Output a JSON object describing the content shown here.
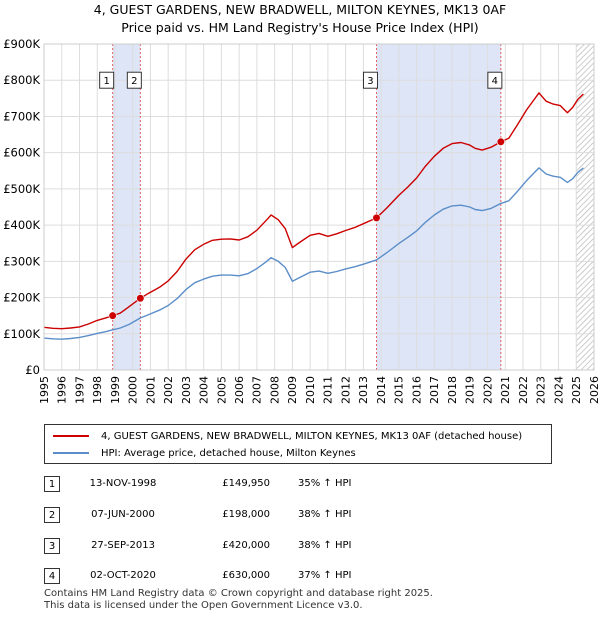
{
  "title_line1": "4, GUEST GARDENS, NEW BRADWELL, MILTON KEYNES, MK13 0AF",
  "title_line2": "Price paid vs. HM Land Registry's House Price Index (HPI)",
  "colors": {
    "property": "#cc0000",
    "hpi": "#5b8ec9",
    "shade": "#dde5f6",
    "grid": "#dddddd",
    "vline": "#e06060"
  },
  "chart_data": {
    "type": "line",
    "xlim": [
      1995,
      2026
    ],
    "ylim": [
      0,
      900000
    ],
    "x_ticks": [
      1995,
      1996,
      1997,
      1998,
      1999,
      2000,
      2001,
      2002,
      2003,
      2004,
      2005,
      2006,
      2007,
      2008,
      2009,
      2010,
      2011,
      2012,
      2013,
      2014,
      2015,
      2016,
      2017,
      2018,
      2019,
      2020,
      2021,
      2022,
      2023,
      2024,
      2025,
      2026
    ],
    "y_ticks": [
      {
        "value": 0,
        "label": "£0"
      },
      {
        "value": 100000,
        "label": "£100K"
      },
      {
        "value": 200000,
        "label": "£200K"
      },
      {
        "value": 300000,
        "label": "£300K"
      },
      {
        "value": 400000,
        "label": "£400K"
      },
      {
        "value": 500000,
        "label": "£500K"
      },
      {
        "value": 600000,
        "label": "£600K"
      },
      {
        "value": 700000,
        "label": "£700K"
      },
      {
        "value": 800000,
        "label": "£800K"
      },
      {
        "value": 900000,
        "label": "£900K"
      }
    ],
    "shaded_ranges": [
      [
        1998.87,
        2000.43
      ],
      [
        2013.74,
        2020.75
      ]
    ],
    "future_hatch_from": 2025.0,
    "series": [
      {
        "name": "4, GUEST GARDENS, NEW BRADWELL, MILTON KEYNES, MK13 0AF (detached house)",
        "color": "#cc0000",
        "points": [
          [
            1995.0,
            118000
          ],
          [
            1995.5,
            115000
          ],
          [
            1996.0,
            114000
          ],
          [
            1996.5,
            116000
          ],
          [
            1997.0,
            119000
          ],
          [
            1997.5,
            127000
          ],
          [
            1998.0,
            137000
          ],
          [
            1998.5,
            144000
          ],
          [
            1998.87,
            149950
          ],
          [
            1999.3,
            157000
          ],
          [
            1999.8,
            175000
          ],
          [
            2000.43,
            198000
          ],
          [
            2000.9,
            212000
          ],
          [
            2001.5,
            228000
          ],
          [
            2002.0,
            246000
          ],
          [
            2002.5,
            272000
          ],
          [
            2003.0,
            306000
          ],
          [
            2003.5,
            332000
          ],
          [
            2004.0,
            347000
          ],
          [
            2004.5,
            358000
          ],
          [
            2005.0,
            361000
          ],
          [
            2005.5,
            362000
          ],
          [
            2006.0,
            359000
          ],
          [
            2006.5,
            368000
          ],
          [
            2007.0,
            386000
          ],
          [
            2007.5,
            412000
          ],
          [
            2007.8,
            428000
          ],
          [
            2008.2,
            415000
          ],
          [
            2008.6,
            390000
          ],
          [
            2009.0,
            338000
          ],
          [
            2009.4,
            352000
          ],
          [
            2010.0,
            372000
          ],
          [
            2010.5,
            377000
          ],
          [
            2011.0,
            369000
          ],
          [
            2011.5,
            376000
          ],
          [
            2012.0,
            385000
          ],
          [
            2012.5,
            393000
          ],
          [
            2013.0,
            404000
          ],
          [
            2013.74,
            420000
          ],
          [
            2014.3,
            446000
          ],
          [
            2015.0,
            482000
          ],
          [
            2015.5,
            505000
          ],
          [
            2016.0,
            530000
          ],
          [
            2016.5,
            563000
          ],
          [
            2017.0,
            590000
          ],
          [
            2017.5,
            612000
          ],
          [
            2018.0,
            625000
          ],
          [
            2018.5,
            628000
          ],
          [
            2019.0,
            621000
          ],
          [
            2019.3,
            612000
          ],
          [
            2019.7,
            607000
          ],
          [
            2020.2,
            615000
          ],
          [
            2020.75,
            630000
          ],
          [
            2021.2,
            640000
          ],
          [
            2021.7,
            678000
          ],
          [
            2022.2,
            718000
          ],
          [
            2022.6,
            745000
          ],
          [
            2022.9,
            765000
          ],
          [
            2023.3,
            742000
          ],
          [
            2023.7,
            734000
          ],
          [
            2024.1,
            730000
          ],
          [
            2024.5,
            710000
          ],
          [
            2024.8,
            725000
          ],
          [
            2025.1,
            748000
          ],
          [
            2025.4,
            762000
          ]
        ]
      },
      {
        "name": "HPI: Average price, detached house, Milton Keynes",
        "color": "#5b8ec9",
        "points": [
          [
            1995.0,
            88000
          ],
          [
            1995.5,
            86000
          ],
          [
            1996.0,
            85000
          ],
          [
            1996.5,
            87000
          ],
          [
            1997.0,
            90000
          ],
          [
            1997.5,
            95000
          ],
          [
            1998.0,
            101000
          ],
          [
            1998.5,
            106000
          ],
          [
            1998.87,
            111000
          ],
          [
            1999.3,
            116000
          ],
          [
            1999.8,
            126000
          ],
          [
            2000.43,
            143500
          ],
          [
            2000.9,
            153000
          ],
          [
            2001.5,
            165000
          ],
          [
            2002.0,
            178000
          ],
          [
            2002.5,
            197000
          ],
          [
            2003.0,
            222000
          ],
          [
            2003.5,
            241000
          ],
          [
            2004.0,
            251000
          ],
          [
            2004.5,
            259000
          ],
          [
            2005.0,
            262000
          ],
          [
            2005.5,
            262000
          ],
          [
            2006.0,
            260000
          ],
          [
            2006.5,
            266000
          ],
          [
            2007.0,
            280000
          ],
          [
            2007.5,
            298000
          ],
          [
            2007.8,
            310000
          ],
          [
            2008.2,
            300000
          ],
          [
            2008.6,
            283000
          ],
          [
            2009.0,
            245000
          ],
          [
            2009.4,
            255000
          ],
          [
            2010.0,
            270000
          ],
          [
            2010.5,
            273000
          ],
          [
            2011.0,
            267000
          ],
          [
            2011.5,
            272000
          ],
          [
            2012.0,
            279000
          ],
          [
            2012.5,
            285000
          ],
          [
            2013.0,
            292000
          ],
          [
            2013.74,
            304000
          ],
          [
            2014.3,
            323000
          ],
          [
            2015.0,
            349000
          ],
          [
            2015.5,
            366000
          ],
          [
            2016.0,
            384000
          ],
          [
            2016.5,
            408000
          ],
          [
            2017.0,
            428000
          ],
          [
            2017.5,
            444000
          ],
          [
            2018.0,
            453000
          ],
          [
            2018.5,
            455000
          ],
          [
            2019.0,
            450000
          ],
          [
            2019.3,
            443000
          ],
          [
            2019.7,
            440000
          ],
          [
            2020.2,
            446000
          ],
          [
            2020.75,
            460000
          ],
          [
            2021.2,
            467000
          ],
          [
            2021.7,
            494000
          ],
          [
            2022.2,
            523000
          ],
          [
            2022.6,
            543000
          ],
          [
            2022.9,
            558000
          ],
          [
            2023.3,
            541000
          ],
          [
            2023.7,
            535000
          ],
          [
            2024.1,
            532000
          ],
          [
            2024.5,
            518000
          ],
          [
            2024.8,
            528000
          ],
          [
            2025.1,
            546000
          ],
          [
            2025.4,
            558000
          ]
        ]
      }
    ],
    "sales": [
      {
        "marker": "1",
        "x": 1998.87,
        "price": 149950,
        "label_y": 800000
      },
      {
        "marker": "2",
        "x": 2000.43,
        "price": 198000,
        "label_y": 800000
      },
      {
        "marker": "3",
        "x": 2013.74,
        "price": 420000,
        "label_y": 800000
      },
      {
        "marker": "4",
        "x": 2020.75,
        "price": 630000,
        "label_y": 800000
      }
    ]
  },
  "legend": {
    "property": "4, GUEST GARDENS, NEW BRADWELL, MILTON KEYNES, MK13 0AF (detached house)",
    "hpi": "HPI: Average price, detached house, Milton Keynes"
  },
  "transactions": [
    {
      "num": "1",
      "date": "13-NOV-1998",
      "price": "£149,950",
      "hpi": "35% ↑ HPI"
    },
    {
      "num": "2",
      "date": "07-JUN-2000",
      "price": "£198,000",
      "hpi": "38% ↑ HPI"
    },
    {
      "num": "3",
      "date": "27-SEP-2013",
      "price": "£420,000",
      "hpi": "38% ↑ HPI"
    },
    {
      "num": "4",
      "date": "02-OCT-2020",
      "price": "£630,000",
      "hpi": "37% ↑ HPI"
    }
  ],
  "footer_line1": "Contains HM Land Registry data © Crown copyright and database right 2025.",
  "footer_line2": "This data is licensed under the Open Government Licence v3.0."
}
